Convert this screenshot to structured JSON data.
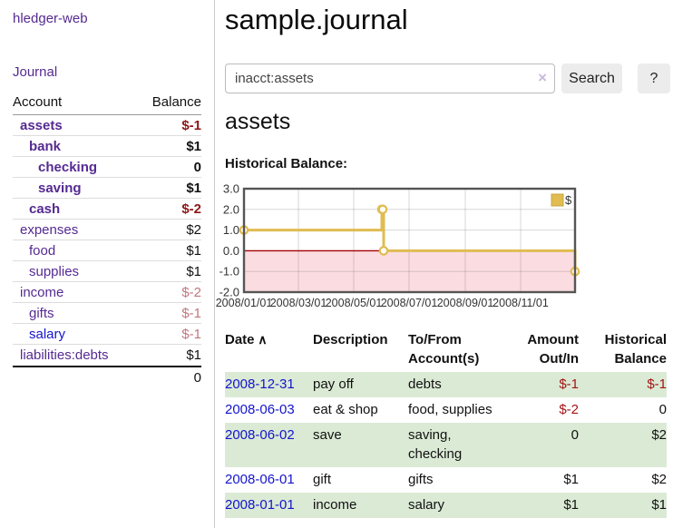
{
  "colors": {
    "purple": "#552a91",
    "blue": "#1414cc",
    "neg-strong": "#8e1717",
    "neg-soft": "#c0777d",
    "neg-table": "#a31515",
    "row-green": "#dbead5"
  },
  "sidebar": {
    "app_title": "hledger-web",
    "journal_label": "Journal",
    "accounts_table": {
      "col_account": "Account",
      "col_balance": "Balance",
      "rows": [
        {
          "name": "assets",
          "indent": 1,
          "bold": true,
          "balance": "$-1",
          "balance_style": "neg-strong"
        },
        {
          "name": "bank",
          "indent": 2,
          "bold": true,
          "balance": "$1",
          "balance_style": "pos"
        },
        {
          "name": "checking",
          "indent": 3,
          "bold": true,
          "balance": "0",
          "balance_style": "pos"
        },
        {
          "name": "saving",
          "indent": 3,
          "bold": true,
          "balance": "$1",
          "balance_style": "pos"
        },
        {
          "name": "cash",
          "indent": 2,
          "bold": true,
          "balance": "$-2",
          "balance_style": "neg-strong"
        },
        {
          "name": "expenses",
          "indent": 1,
          "bold": false,
          "balance": "$2",
          "balance_style": "pos"
        },
        {
          "name": "food",
          "indent": 2,
          "bold": false,
          "balance": "$1",
          "balance_style": "pos"
        },
        {
          "name": "supplies",
          "indent": 2,
          "bold": false,
          "balance": "$1",
          "balance_style": "pos"
        },
        {
          "name": "income",
          "indent": 1,
          "bold": false,
          "balance": "$-2",
          "balance_style": "neg-soft"
        },
        {
          "name": "gifts",
          "indent": 2,
          "bold": false,
          "balance": "$-1",
          "balance_style": "neg-soft"
        },
        {
          "name": "salary",
          "indent": 2,
          "bold": false,
          "blue": true,
          "balance": "$-1",
          "balance_style": "neg-soft"
        },
        {
          "name": "liabilities:debts",
          "indent": 1,
          "bold": false,
          "balance": "$1",
          "balance_style": "pos"
        }
      ],
      "total": "0"
    }
  },
  "header": {
    "title": "sample.journal",
    "search": {
      "value": "inacct:assets",
      "clear_icon": "×",
      "search_label": "Search",
      "help_label": "?"
    }
  },
  "main": {
    "account_heading": "assets",
    "chart_label": "Historical Balance:"
  },
  "chart_data": {
    "type": "line",
    "step": true,
    "title": "Historical Balance:",
    "grid": true,
    "legend_position": "top-right",
    "x_range": [
      "2008-01-01",
      "2008-12-31"
    ],
    "ylim": [
      -2.0,
      3.0
    ],
    "y_ticks": [
      3.0,
      2.0,
      1.0,
      0.0,
      -1.0,
      -2.0
    ],
    "x_ticks": [
      {
        "date": "2008-01-01",
        "label": "2008/01/01"
      },
      {
        "date": "2008-03-01",
        "label": "2008/03/01"
      },
      {
        "date": "2008-05-01",
        "label": "2008/05/01"
      },
      {
        "date": "2008-07-01",
        "label": "2008/07/01"
      },
      {
        "date": "2008-09-01",
        "label": "2008/09/01"
      },
      {
        "date": "2008-11-01",
        "label": "2008/11/01"
      }
    ],
    "series": [
      {
        "name": "$",
        "color": "#e0bc52",
        "points": [
          [
            "2008-01-01",
            1
          ],
          [
            "2008-06-01",
            2
          ],
          [
            "2008-06-02",
            2
          ],
          [
            "2008-06-03",
            0
          ],
          [
            "2008-12-31",
            -1
          ]
        ]
      }
    ],
    "negative_region_color": "#fbdce0",
    "zero_line_color": "#a00000"
  },
  "register": {
    "columns": [
      {
        "key": "date",
        "label": "Date",
        "sort_icon": "∧",
        "sortable": true
      },
      {
        "key": "description",
        "label": "Description"
      },
      {
        "key": "accounts",
        "label": "To/From Account(s)"
      },
      {
        "key": "amount",
        "label": "Amount Out/In",
        "align": "right"
      },
      {
        "key": "balance",
        "label": "Historical Balance",
        "align": "right"
      }
    ],
    "rows": [
      {
        "date": "2008-12-31",
        "description": "pay off",
        "accounts": "debts",
        "amount": "$-1",
        "amount_neg": true,
        "balance": "$-1",
        "balance_neg": true
      },
      {
        "date": "2008-06-03",
        "description": "eat & shop",
        "accounts": "food, supplies",
        "amount": "$-2",
        "amount_neg": true,
        "balance": "0",
        "balance_neg": false
      },
      {
        "date": "2008-06-02",
        "description": "save",
        "accounts": "saving, checking",
        "amount": "0",
        "amount_neg": false,
        "balance": "$2",
        "balance_neg": false
      },
      {
        "date": "2008-06-01",
        "description": "gift",
        "accounts": "gifts",
        "amount": "$1",
        "amount_neg": false,
        "balance": "$2",
        "balance_neg": false
      },
      {
        "date": "2008-01-01",
        "description": "income",
        "accounts": "salary",
        "amount": "$1",
        "amount_neg": false,
        "balance": "$1",
        "balance_neg": false
      }
    ]
  }
}
